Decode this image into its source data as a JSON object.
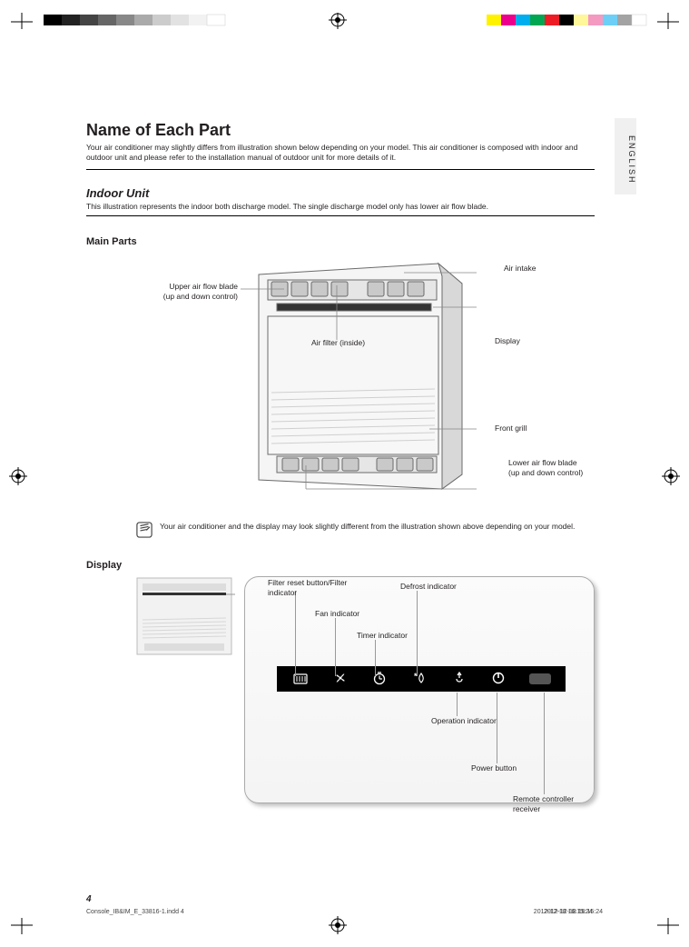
{
  "page_number": "4",
  "footer": "Console_IB&IM_E_33816-1.indd   4",
  "footer_time": "2012-12-18   16:15:24",
  "title": "Name of Each Part",
  "intro": "Your air conditioner may slightly differs from illustration shown below depending on your model. This air conditioner is composed with indoor and outdoor unit and please refer to the installation manual of outdoor unit for more details of it.",
  "subhead": "Indoor Unit",
  "subtext": "This illustration represents the indoor both discharge model. The single discharge model only has lower air flow blade.",
  "section_head": "Main Parts",
  "labels": {
    "upper_blade": "Upper air flow blade \n(up and down control)",
    "air_intake": "Air intake",
    "air_filter": "Air filter (inside)",
    "display": "Display",
    "front_grill": "Front grill",
    "lower_blade": "Lower air flow blade \n(up and down control)"
  },
  "note": "Your air conditioner and the display may look slightly different from the illustration shown above depending on your model.",
  "display_head": "Display",
  "panel": {
    "filter": "Filter reset button/Filter \nindicator",
    "fan": "Fan indicator",
    "timer": "Timer indicator",
    "defrost": "Defrost indicator",
    "operation": "Operation indicator",
    "power": "Power button",
    "receiver": "Remote controller receiver"
  },
  "colors": {
    "strip_bg": "#000000",
    "icon_fg": "#ffffff",
    "leader": "#999999",
    "panel_border": "#aaaaaa"
  }
}
